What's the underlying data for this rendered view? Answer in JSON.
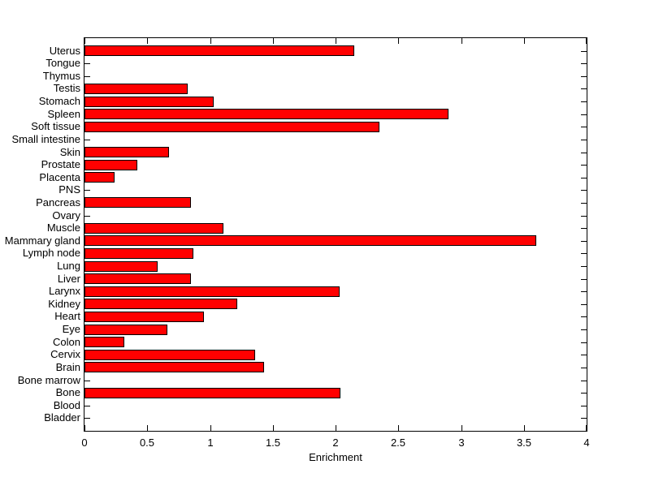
{
  "figure": {
    "background_color": "#ffffff",
    "bar_fill_color": "#ff0000",
    "bar_edge_color": "#000000",
    "axis_color": "#000000",
    "text_color": "#000000"
  },
  "chart_data": {
    "type": "bar",
    "orientation": "horizontal",
    "title": "",
    "xlabel": "Enrichment",
    "ylabel": "",
    "xlim": [
      0,
      4
    ],
    "xticks": [
      0,
      0.5,
      1,
      1.5,
      2,
      2.5,
      3,
      3.5,
      4
    ],
    "xtick_labels": [
      "0",
      "0.5",
      "1",
      "1.5",
      "2",
      "2.5",
      "3",
      "3.5",
      "4"
    ],
    "grid": false,
    "legend_position": "none",
    "categories_top_to_bottom": [
      "Uterus",
      "Tongue",
      "Thymus",
      "Testis",
      "Stomach",
      "Spleen",
      "Soft tissue",
      "Small intestine",
      "Skin",
      "Prostate",
      "Placenta",
      "PNS",
      "Pancreas",
      "Ovary",
      "Muscle",
      "Mammary gland",
      "Lymph node",
      "Lung",
      "Liver",
      "Larynx",
      "Kidney",
      "Heart",
      "Eye",
      "Colon",
      "Cervix",
      "Brain",
      "Bone marrow",
      "Bone",
      "Blood",
      "Bladder"
    ],
    "values_top_to_bottom": [
      2.15,
      0,
      0,
      0.82,
      1.03,
      2.9,
      2.35,
      0,
      0.67,
      0.42,
      0.24,
      0,
      0.85,
      0,
      1.11,
      3.6,
      0.87,
      0.58,
      0.85,
      2.03,
      1.22,
      0.95,
      0.66,
      0.32,
      1.36,
      1.43,
      0,
      2.04,
      0,
      0
    ]
  }
}
